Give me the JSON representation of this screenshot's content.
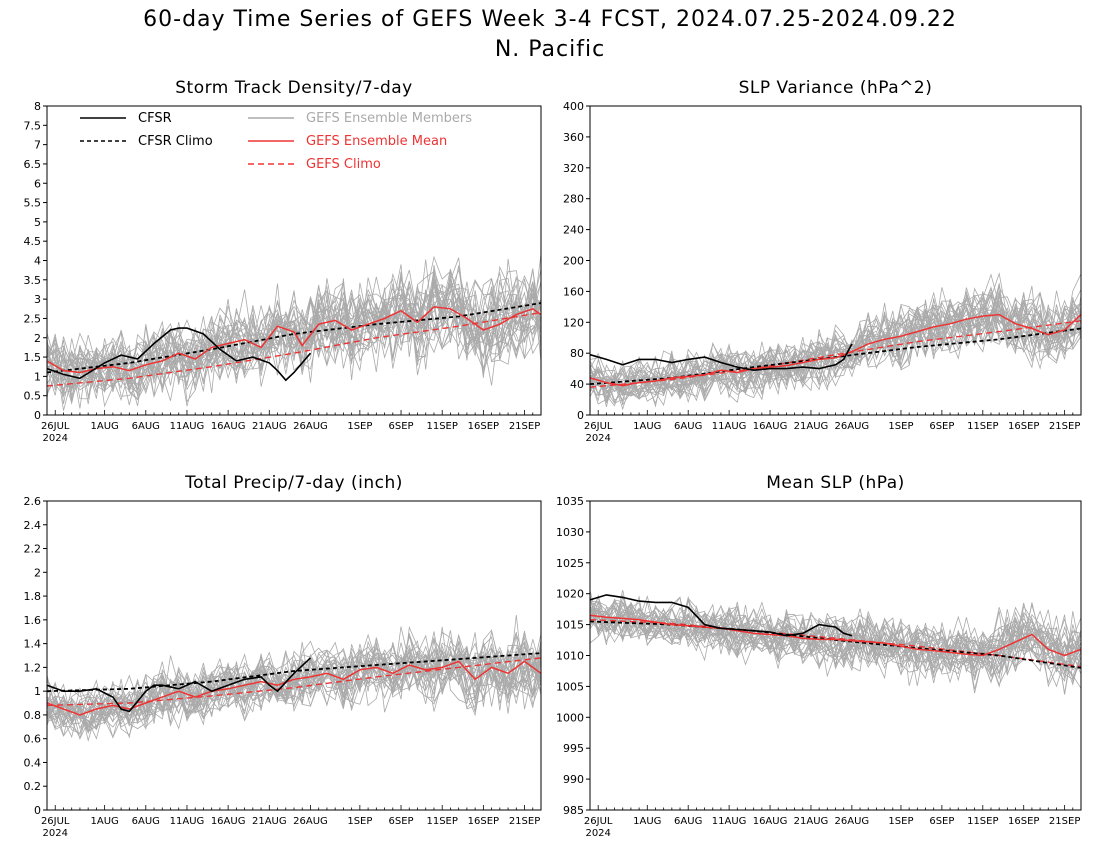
{
  "page": {
    "title_line1": "60-day Time Series of GEFS Week 3-4 FCST, 2024.07.25-2024.09.22",
    "title_line2": "N. Pacific"
  },
  "legend": {
    "cfsr": "CFSR",
    "cfsr_climo": "CFSR Climo",
    "members": "GEFS Ensemble Members",
    "ens_mean": "GEFS Ensemble Mean",
    "gefs_climo": "GEFS Climo"
  },
  "colors": {
    "cfsr": "#000000",
    "members": "#aaaaaa",
    "gefs": "#ee3333",
    "axis": "#000000"
  },
  "x_axis": {
    "year_label": "2024",
    "tick_labels": [
      "26JUL",
      "1AUG",
      "6AUG",
      "11AUG",
      "16AUG",
      "21AUG",
      "26AUG",
      "1SEP",
      "6SEP",
      "11SEP",
      "16SEP",
      "21SEP"
    ],
    "tick_days": [
      1,
      7,
      12,
      17,
      22,
      27,
      32,
      38,
      43,
      48,
      53,
      58
    ],
    "range_days": [
      0,
      60
    ]
  },
  "chart_data": [
    {
      "type": "line",
      "title": "Storm Track Density/7-day",
      "ylim": [
        0,
        8
      ],
      "yticks": [
        "0",
        "0.5",
        "1",
        "1.5",
        "2",
        "2.5",
        "3",
        "3.5",
        "4",
        "4.5",
        "5",
        "5.5",
        "6",
        "6.5",
        "7",
        "7.5",
        "8"
      ],
      "members_spread": 0.8,
      "series": [
        {
          "name": "CFSR",
          "x": [
            0,
            2,
            4,
            7,
            9,
            11,
            13,
            15,
            16,
            17,
            19,
            21,
            23,
            24,
            25,
            27,
            28,
            29,
            30,
            32
          ],
          "y": [
            1.2,
            1.05,
            0.95,
            1.35,
            1.55,
            1.45,
            1.85,
            2.2,
            2.25,
            2.25,
            2.1,
            1.7,
            1.4,
            1.45,
            1.5,
            1.35,
            1.15,
            0.9,
            1.1,
            1.6
          ]
        },
        {
          "name": "CFSR Climo",
          "x": [
            0,
            10,
            20,
            30,
            40,
            50,
            60
          ],
          "y": [
            1.1,
            1.35,
            1.7,
            2.1,
            2.35,
            2.55,
            2.9
          ]
        },
        {
          "name": "GEFS Ensemble Mean",
          "x": [
            0,
            2,
            4,
            6,
            8,
            10,
            12,
            14,
            16,
            18,
            20,
            22,
            24,
            26,
            28,
            30,
            31,
            33,
            35,
            37,
            39,
            41,
            43,
            45,
            47,
            49,
            51,
            53,
            55,
            57,
            59,
            60
          ],
          "y": [
            1.4,
            1.15,
            1.1,
            1.2,
            1.25,
            1.15,
            1.3,
            1.4,
            1.6,
            1.45,
            1.75,
            1.85,
            1.95,
            1.75,
            2.3,
            2.15,
            1.8,
            2.35,
            2.45,
            2.2,
            2.35,
            2.5,
            2.7,
            2.4,
            2.8,
            2.75,
            2.5,
            2.2,
            2.35,
            2.6,
            2.75,
            2.6
          ]
        },
        {
          "name": "GEFS Climo",
          "x": [
            0,
            10,
            20,
            30,
            40,
            50,
            60
          ],
          "y": [
            0.75,
            0.95,
            1.25,
            1.6,
            2.0,
            2.3,
            2.65
          ]
        }
      ]
    },
    {
      "type": "line",
      "title": "SLP Variance (hPa^2)",
      "ylim": [
        0,
        400
      ],
      "yticks": [
        "0",
        "40",
        "80",
        "120",
        "160",
        "200",
        "240",
        "280",
        "320",
        "360",
        "400"
      ],
      "members_spread": 28,
      "series": [
        {
          "name": "CFSR",
          "x": [
            0,
            2,
            4,
            6,
            8,
            10,
            12,
            14,
            16,
            18,
            20,
            22,
            24,
            26,
            28,
            30,
            31,
            32
          ],
          "y": [
            78,
            72,
            65,
            72,
            72,
            68,
            72,
            75,
            68,
            62,
            58,
            60,
            60,
            62,
            60,
            65,
            72,
            92
          ]
        },
        {
          "name": "CFSR Climo",
          "x": [
            0,
            10,
            20,
            30,
            40,
            50,
            60
          ],
          "y": [
            40,
            48,
            62,
            75,
            88,
            98,
            112
          ]
        },
        {
          "name": "GEFS Ensemble Mean",
          "x": [
            0,
            2,
            4,
            6,
            8,
            10,
            12,
            14,
            16,
            18,
            20,
            22,
            24,
            26,
            28,
            30,
            32,
            34,
            36,
            38,
            40,
            42,
            44,
            46,
            48,
            50,
            52,
            54,
            56,
            58,
            60
          ],
          "y": [
            48,
            42,
            38,
            42,
            44,
            48,
            50,
            52,
            58,
            55,
            60,
            62,
            64,
            68,
            72,
            74,
            82,
            92,
            98,
            102,
            108,
            114,
            118,
            124,
            128,
            130,
            118,
            112,
            104,
            110,
            130
          ]
        },
        {
          "name": "GEFS Climo",
          "x": [
            0,
            10,
            20,
            30,
            40,
            50,
            60
          ],
          "y": [
            36,
            46,
            60,
            78,
            95,
            108,
            122
          ]
        }
      ]
    },
    {
      "type": "line",
      "title": "Total Precip/7-day (inch)",
      "ylim": [
        0,
        2.6
      ],
      "yticks": [
        "0",
        "0.2",
        "0.4",
        "0.6",
        "0.8",
        "1",
        "1.2",
        "1.4",
        "1.6",
        "1.8",
        "2",
        "2.2",
        "2.4",
        "2.6"
      ],
      "members_spread": 0.2,
      "series": [
        {
          "name": "CFSR",
          "x": [
            0,
            2,
            4,
            6,
            8,
            9,
            10,
            12,
            13,
            14,
            16,
            18,
            20,
            22,
            24,
            26,
            27,
            28,
            30,
            32
          ],
          "y": [
            1.05,
            1.0,
            1.0,
            1.02,
            0.95,
            0.85,
            0.83,
            1.0,
            1.05,
            1.05,
            1.02,
            1.08,
            1.0,
            1.05,
            1.1,
            1.12,
            1.05,
            1.0,
            1.15,
            1.28
          ]
        },
        {
          "name": "CFSR Climo",
          "x": [
            0,
            10,
            20,
            30,
            40,
            50,
            60
          ],
          "y": [
            1.0,
            1.02,
            1.08,
            1.17,
            1.22,
            1.27,
            1.32
          ]
        },
        {
          "name": "GEFS Ensemble Mean",
          "x": [
            0,
            2,
            4,
            6,
            8,
            10,
            12,
            14,
            16,
            18,
            20,
            22,
            24,
            26,
            28,
            30,
            32,
            34,
            36,
            38,
            40,
            42,
            44,
            46,
            48,
            50,
            52,
            54,
            56,
            58,
            60
          ],
          "y": [
            0.9,
            0.85,
            0.8,
            0.85,
            0.88,
            0.85,
            0.9,
            0.95,
            1.0,
            0.95,
            1.0,
            1.02,
            1.05,
            1.08,
            1.05,
            1.1,
            1.12,
            1.15,
            1.1,
            1.18,
            1.2,
            1.15,
            1.22,
            1.18,
            1.2,
            1.25,
            1.1,
            1.2,
            1.15,
            1.25,
            1.15
          ]
        },
        {
          "name": "GEFS Climo",
          "x": [
            0,
            10,
            20,
            30,
            40,
            50,
            60
          ],
          "y": [
            0.88,
            0.9,
            0.96,
            1.03,
            1.12,
            1.2,
            1.28
          ]
        }
      ]
    },
    {
      "type": "line",
      "title": "Mean SLP (hPa)",
      "ylim": [
        985,
        1035
      ],
      "yticks": [
        "985",
        "990",
        "995",
        "1000",
        "1005",
        "1010",
        "1015",
        "1020",
        "1025",
        "1030",
        "1035"
      ],
      "members_spread": 3.5,
      "series": [
        {
          "name": "CFSR",
          "x": [
            0,
            2,
            4,
            6,
            8,
            10,
            12,
            14,
            16,
            18,
            20,
            22,
            24,
            26,
            28,
            30,
            31,
            32
          ],
          "y": [
            1019,
            1019.8,
            1019.4,
            1018.8,
            1018.6,
            1018.6,
            1017.8,
            1015.0,
            1014.4,
            1014.2,
            1014.0,
            1013.8,
            1013.2,
            1013.6,
            1015.0,
            1014.6,
            1013.6,
            1013.2
          ]
        },
        {
          "name": "CFSR Climo",
          "x": [
            0,
            10,
            20,
            30,
            40,
            50,
            60
          ],
          "y": [
            1015.5,
            1015.0,
            1014.0,
            1012.5,
            1011.2,
            1010.0,
            1008.0
          ]
        },
        {
          "name": "GEFS Ensemble Mean",
          "x": [
            0,
            2,
            4,
            6,
            8,
            10,
            12,
            14,
            16,
            18,
            20,
            22,
            24,
            26,
            28,
            30,
            32,
            34,
            36,
            38,
            40,
            42,
            44,
            46,
            48,
            50,
            52,
            54,
            56,
            58,
            60
          ],
          "y": [
            1016.5,
            1016.2,
            1016.0,
            1015.8,
            1015.4,
            1015.0,
            1014.8,
            1014.6,
            1014.4,
            1014.0,
            1013.6,
            1013.4,
            1013.2,
            1012.8,
            1012.6,
            1012.6,
            1012.4,
            1012.2,
            1012.0,
            1011.5,
            1011.0,
            1010.8,
            1010.5,
            1010.2,
            1010.0,
            1011.0,
            1012.2,
            1013.4,
            1011.0,
            1010.0,
            1011.0
          ]
        },
        {
          "name": "GEFS Climo",
          "x": [
            0,
            10,
            20,
            30,
            40,
            50,
            60
          ],
          "y": [
            1015.8,
            1015.2,
            1014.0,
            1012.8,
            1011.5,
            1010.0,
            1008.2
          ]
        }
      ]
    }
  ]
}
